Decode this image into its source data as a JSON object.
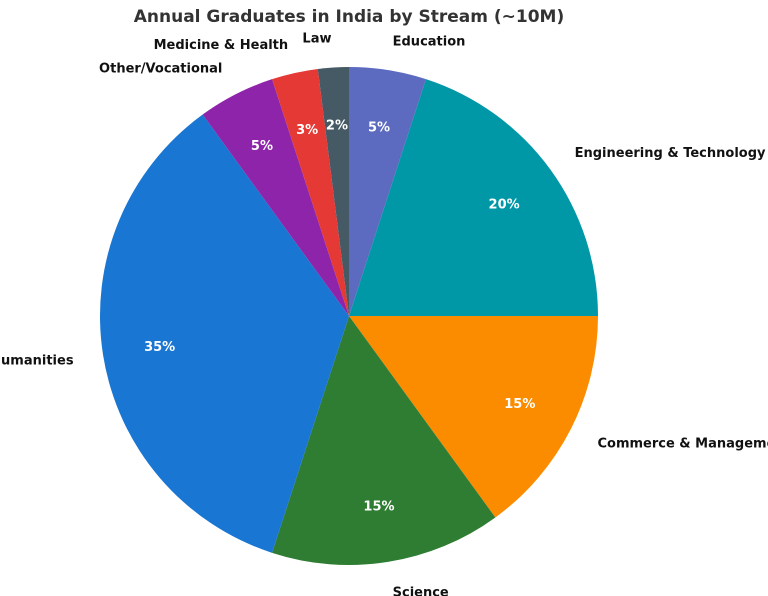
{
  "chart_data": {
    "type": "pie",
    "title": "Annual Graduates in India by Stream (~10M)",
    "start_angle_deg": 90,
    "direction": "clockwise",
    "legend": "none",
    "slices": [
      {
        "label": "Education",
        "value": 5,
        "pct_label": "5%",
        "color": "#5C6BC0"
      },
      {
        "label": "Engineering & Technology",
        "value": 20,
        "pct_label": "20%",
        "color": "#0097A7"
      },
      {
        "label": "Commerce & Management",
        "value": 15,
        "pct_label": "15%",
        "color": "#FB8C00"
      },
      {
        "label": "Science",
        "value": 15,
        "pct_label": "15%",
        "color": "#2E7D32"
      },
      {
        "label": "Arts & Humanities",
        "value": 35,
        "pct_label": "35%",
        "color": "#1976D2"
      },
      {
        "label": "Other/Vocational",
        "value": 5,
        "pct_label": "5%",
        "color": "#8E24AA"
      },
      {
        "label": "Medicine & Health",
        "value": 3,
        "pct_label": "3%",
        "color": "#E53935"
      },
      {
        "label": "Law",
        "value": 2,
        "pct_label": "2%",
        "color": "#455A64"
      }
    ]
  }
}
